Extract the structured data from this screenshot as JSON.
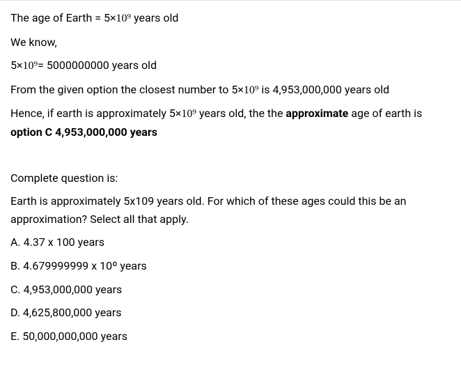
{
  "p1_a": "The age of Earth =  5×",
  "p1_exp": "10⁹",
  "p1_b": " years old",
  "p2": "We know,",
  "p3_a": "5×",
  "p3_exp": "10⁹",
  "p3_b": "= 5000000000 years old",
  "p4_a": "From the given option the closest number to 5×",
  "p4_exp": "10⁹",
  "p4_b": " is 4,953,000,000 years old",
  "p5_a": "Hence, if earth is approximately 5×",
  "p5_exp": "10⁹",
  "p5_b": " years old, the the ",
  "p5_bold1": "approximate",
  "p5_c": " age of earth is ",
  "p5_bold2": "option C 4,953,000,000 years",
  "p6": "Complete question is:",
  "p7": "Earth is approximately 5x109 years old. For which of these ages could this be an approximation? Select all that apply.",
  "optA": "A. 4.37 x 100 years",
  "optB": "B. 4.679999999 x 10º years",
  "optC": "C. 4,953,000,000 years",
  "optD": "D. 4,625,800,000 years",
  "optE": "E. 50,000,000,000 years"
}
